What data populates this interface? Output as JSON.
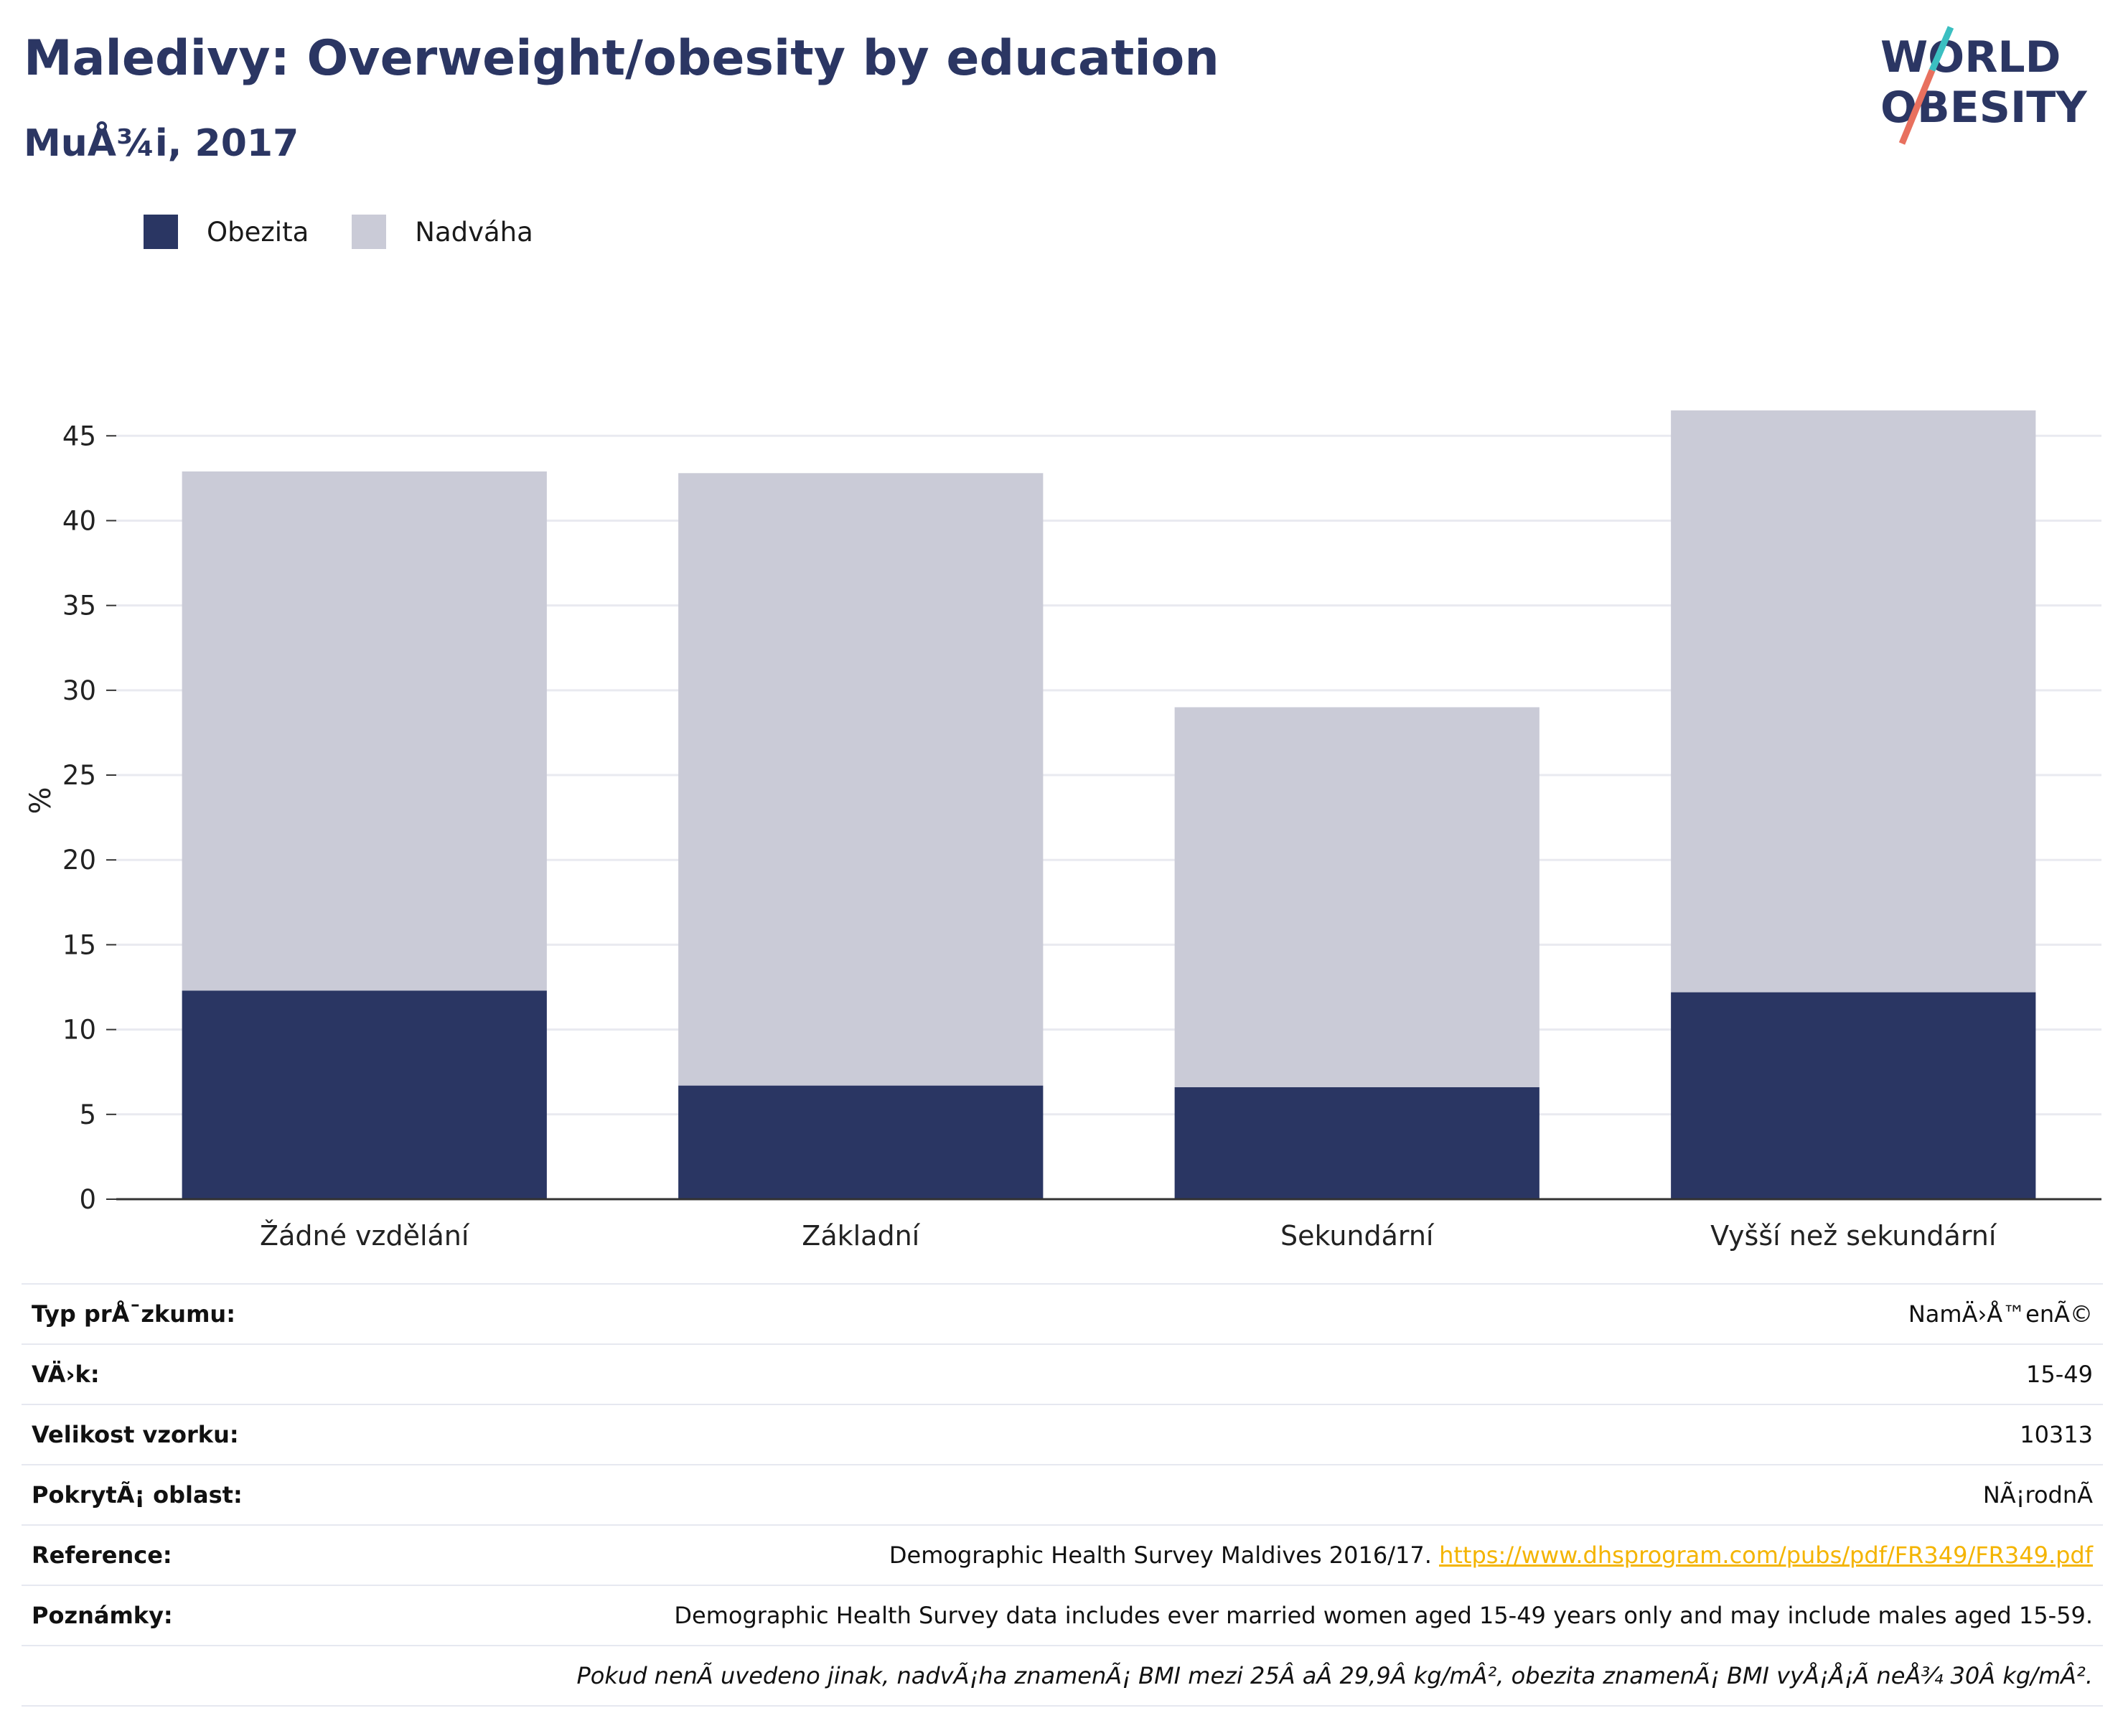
{
  "title": "Maledivy: Overweight/obesity by education",
  "subtitle": "MuÅ¾i, 2017",
  "logo": {
    "line1": "WORLD",
    "line2": "OBESITY",
    "colors": [
      "#2b3663",
      "#e8705e",
      "#3bbfc1"
    ]
  },
  "legend": [
    {
      "label": "Obezita",
      "color": "#2a3663"
    },
    {
      "label": "Nadváha",
      "color": "#cacbd7"
    }
  ],
  "chart_data": {
    "type": "bar",
    "stacked": true,
    "categories": [
      "Žádné vzdělání",
      "Základní",
      "Sekundární",
      "Vyšší než sekundární"
    ],
    "series": [
      {
        "name": "Obezita",
        "color": "#2a3663",
        "values": [
          12.3,
          6.7,
          6.6,
          12.2
        ]
      },
      {
        "name": "Nadváha",
        "color": "#cacbd7",
        "values": [
          30.6,
          36.1,
          22.4,
          34.3
        ]
      }
    ],
    "ylabel": "%",
    "ylim": [
      0,
      47
    ],
    "yticks": [
      0,
      5,
      10,
      15,
      20,
      25,
      30,
      35,
      40,
      45
    ],
    "grid": true,
    "legend_position": "top-left"
  },
  "info": {
    "rows": [
      {
        "key": "Typ prÅ¯zkumu:",
        "value": "NamÄ›Å™enÃ©"
      },
      {
        "key": "VÄ›k:",
        "value": "15-49"
      },
      {
        "key": "Velikost vzorku:",
        "value": "10313"
      },
      {
        "key": "PokrytÃ¡ oblast:",
        "value": "NÃ¡rodnÃ"
      }
    ],
    "reference_key": "Reference:",
    "reference_text": "Demographic Health Survey Maldives 2016/17.",
    "reference_link": "https://www.dhsprogram.com/pubs/pdf/FR349/FR349.pdf",
    "notes_key": "Poznámky:",
    "notes_text": "Demographic Health Survey data includes ever married women aged 15-49 years only and may include males aged 15-59.",
    "footnote": "Pokud nenÃ uvedeno jinak, nadvÃ¡ha znamenÃ¡ BMI mezi 25Â aÂ 29,9Â kg/mÂ², obezita znamenÃ¡ BMI vyÅ¡Å¡Ã neÅ¾ 30Â kg/mÂ²."
  }
}
